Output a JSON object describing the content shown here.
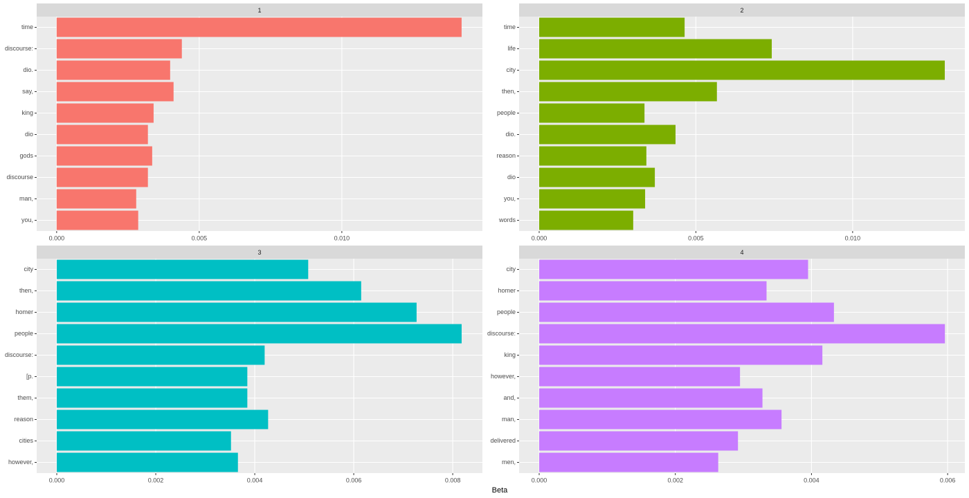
{
  "chart_data": [
    {
      "type": "bar",
      "orientation": "horizontal",
      "title": "1",
      "color": "#F8766D",
      "grid": true,
      "categories": [
        "time",
        "discourse:",
        "dio.",
        "say,",
        "king",
        "dio",
        "gods",
        "discourse",
        "man,",
        "you,"
      ],
      "values": [
        0.0142,
        0.00439,
        0.00398,
        0.0041,
        0.0034,
        0.0032,
        0.00335,
        0.0032,
        0.00279,
        0.00286
      ],
      "xlim": [
        -0.0007,
        0.01493
      ],
      "xticks": [
        {
          "value": 0,
          "label": "0.000"
        },
        {
          "value": 0.005,
          "label": "0.005"
        },
        {
          "value": 0.01,
          "label": "0.010"
        }
      ]
    },
    {
      "type": "bar",
      "orientation": "horizontal",
      "title": "2",
      "color": "#7CAE00",
      "grid": true,
      "categories": [
        "time",
        "life",
        "city",
        "then,",
        "people",
        "dio.",
        "reason",
        "dio",
        "you,",
        "words"
      ],
      "values": [
        0.00464,
        0.00742,
        0.01294,
        0.00567,
        0.00336,
        0.00435,
        0.00342,
        0.00369,
        0.00338,
        0.003
      ],
      "xlim": [
        -0.00064,
        0.01358
      ],
      "xticks": [
        {
          "value": 0,
          "label": "0.000"
        },
        {
          "value": 0.005,
          "label": "0.005"
        },
        {
          "value": 0.01,
          "label": "0.010"
        }
      ]
    },
    {
      "type": "bar",
      "orientation": "horizontal",
      "title": "3",
      "color": "#00BFC4",
      "grid": true,
      "categories": [
        "city",
        "then,",
        "homer",
        "people",
        "discourse:",
        "[p.",
        "them,",
        "reason",
        "cities",
        "however,"
      ],
      "values": [
        0.00508,
        0.00615,
        0.00727,
        0.00818,
        0.0042,
        0.00385,
        0.00385,
        0.00427,
        0.00352,
        0.00366
      ],
      "xlim": [
        -0.000406,
        0.0086
      ],
      "xticks": [
        {
          "value": 0,
          "label": "0.000"
        },
        {
          "value": 0.002,
          "label": "0.002"
        },
        {
          "value": 0.004,
          "label": "0.004"
        },
        {
          "value": 0.006,
          "label": "0.006"
        },
        {
          "value": 0.008,
          "label": "0.008"
        }
      ]
    },
    {
      "type": "bar",
      "orientation": "horizontal",
      "title": "4",
      "color": "#C77CFF",
      "grid": true,
      "categories": [
        "city",
        "homer",
        "people",
        "discourse:",
        "king",
        "however,",
        "and,",
        "man,",
        "delivered",
        "men,"
      ],
      "values": [
        0.00395,
        0.00334,
        0.00433,
        0.00596,
        0.00416,
        0.00295,
        0.00328,
        0.00356,
        0.00292,
        0.00263
      ],
      "xlim": [
        -0.000295,
        0.006253
      ],
      "xticks": [
        {
          "value": 0,
          "label": "0.000"
        },
        {
          "value": 0.002,
          "label": "0.002"
        },
        {
          "value": 0.004,
          "label": "0.004"
        },
        {
          "value": 0.006,
          "label": "0.006"
        }
      ]
    }
  ],
  "x_label": "Beta"
}
